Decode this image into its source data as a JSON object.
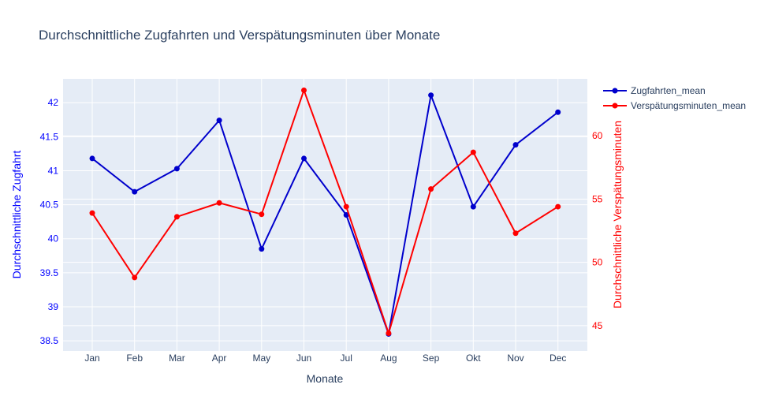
{
  "chart_data": {
    "type": "line",
    "title": "Durchschnittliche Zugfahrten und Verspätungsminuten über Monate",
    "xlabel": "Monate",
    "categories": [
      "Jan",
      "Feb",
      "Mar",
      "Apr",
      "May",
      "Jun",
      "Jul",
      "Aug",
      "Sep",
      "Okt",
      "Nov",
      "Dec"
    ],
    "y_left": {
      "label": "Durchschnittliche Zugfahrt",
      "range": [
        38.35,
        42.35
      ],
      "ticks": [
        "38.5",
        "39",
        "39.5",
        "40",
        "40.5",
        "41",
        "41.5",
        "42"
      ],
      "color": "#0000ff"
    },
    "y_right": {
      "label": "Durchschnittliche Verspätungsminuten",
      "range": [
        43.0,
        64.5
      ],
      "ticks": [
        "45",
        "50",
        "55",
        "60"
      ],
      "color": "#ff0000"
    },
    "series": [
      {
        "name": "Zugfahrten_mean",
        "axis": "left",
        "color": "#0000cc",
        "values": [
          41.18,
          40.69,
          41.03,
          41.74,
          39.85,
          41.18,
          40.35,
          38.6,
          42.11,
          40.47,
          41.38,
          41.86
        ]
      },
      {
        "name": "Verspätungsminuten_mean",
        "axis": "right",
        "color": "#ff0000",
        "values": [
          53.9,
          48.8,
          53.6,
          54.7,
          53.8,
          63.6,
          54.4,
          44.4,
          55.8,
          58.7,
          52.3,
          54.4
        ]
      }
    ],
    "grid": true,
    "legend_position": "top-right",
    "plot_background": "#e5ecf6"
  }
}
